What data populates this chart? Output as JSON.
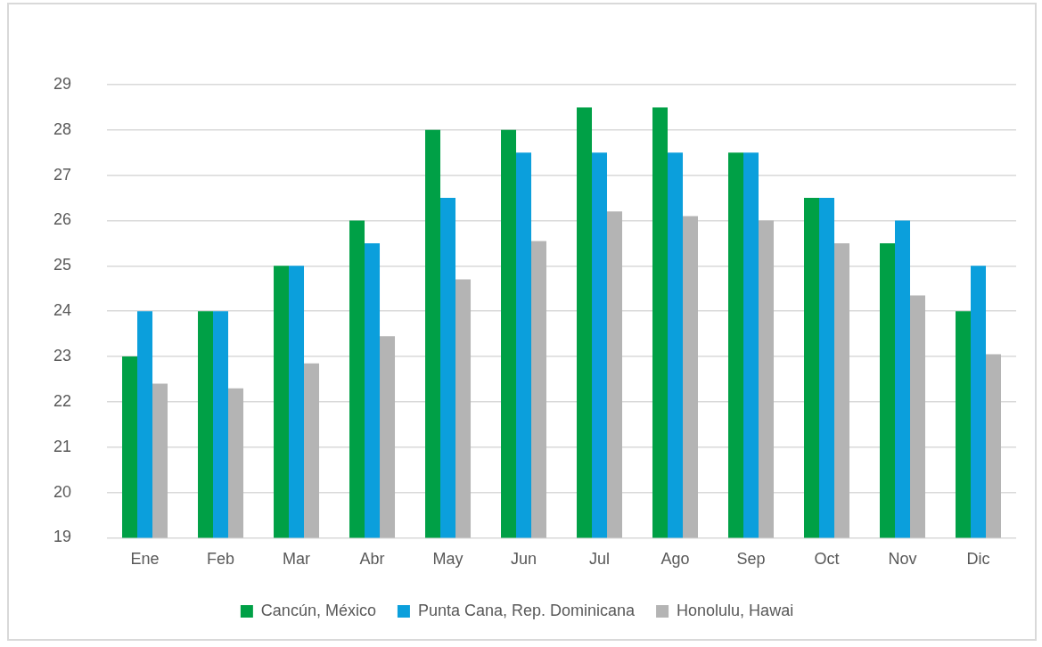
{
  "chart_data": {
    "type": "bar",
    "categories": [
      "Ene",
      "Feb",
      "Mar",
      "Abr",
      "May",
      "Jun",
      "Jul",
      "Ago",
      "Sep",
      "Oct",
      "Nov",
      "Dic"
    ],
    "series": [
      {
        "name": "Cancún, México",
        "color": "#00a046",
        "values": [
          23,
          24,
          25,
          26,
          28,
          28,
          28.5,
          28.5,
          27.5,
          26.5,
          25.5,
          24
        ]
      },
      {
        "name": "Punta Cana, Rep. Dominicana",
        "color": "#0b9fdc",
        "values": [
          24,
          24,
          25,
          25.5,
          26.5,
          27.5,
          27.5,
          27.5,
          27.5,
          26.5,
          26,
          25
        ]
      },
      {
        "name": "Honolulu, Hawai",
        "color": "#b4b4b4",
        "values": [
          22.4,
          22.3,
          22.85,
          23.45,
          24.7,
          25.55,
          26.2,
          26.1,
          26,
          25.5,
          24.35,
          23.05
        ]
      }
    ],
    "ylim": [
      19,
      29
    ],
    "yticks": [
      19,
      20,
      21,
      22,
      23,
      24,
      25,
      26,
      27,
      28,
      29
    ],
    "grid": "y",
    "legend": "bottom"
  }
}
